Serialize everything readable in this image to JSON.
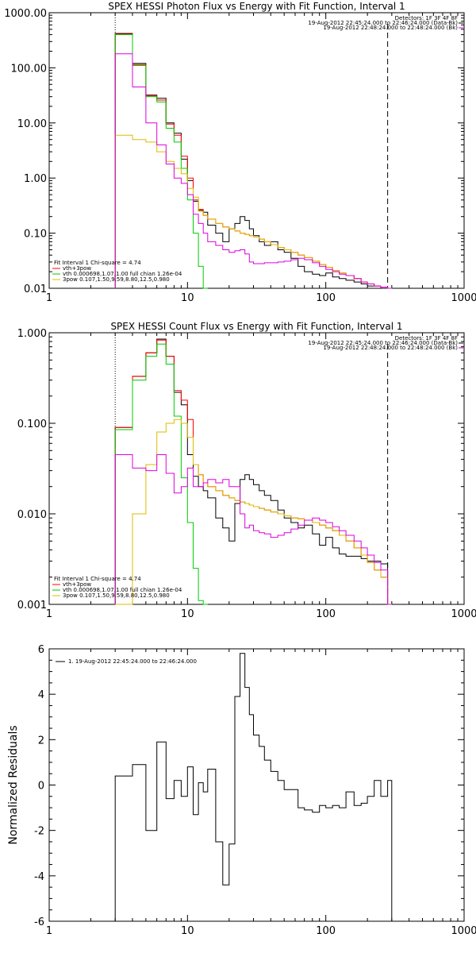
{
  "chart_data": [
    {
      "type": "line",
      "title": "SPEX HESSI Photon Flux vs Energy with Fit Function, Interval 1",
      "xlabel": "",
      "ylabel": "",
      "xscale": "log",
      "yscale": "log",
      "xlim": [
        1,
        1000
      ],
      "ylim": [
        0.01,
        1000
      ],
      "xticks": [
        "1",
        "10",
        "100",
        "1000"
      ],
      "yticks": [
        "0.01",
        "0.10",
        "1.00",
        "10.00",
        "100.00",
        "1000.00"
      ],
      "header_lines": [
        "Detectors: 1F 3F 4F 8F",
        "19-Aug-2012 22:45:24.000 to 22:46:24.000 (Data-Bk)",
        "19-Aug-2012 22:48:24.000 to 22:48:24.000 (Bk)"
      ],
      "legend_lines": [
        "Fit Interval 1   Chi-square = 4.74",
        "vth+3pow",
        "vth 0.000698,1.07,1.00   full chian 1.26e-04",
        "3pow 0.107,1.50,9.59,8.80,12.5,0.980"
      ],
      "vlines": [
        3,
        280
      ],
      "series": [
        {
          "name": "Data-Bk",
          "color": "#000000",
          "x": [
            3,
            4,
            5,
            6,
            7,
            8,
            9,
            10,
            11,
            12,
            13,
            14,
            16,
            18,
            20,
            22,
            24,
            26,
            28,
            30,
            33,
            36,
            40,
            45,
            50,
            56,
            63,
            70,
            80,
            90,
            100,
            112,
            125,
            140,
            160,
            180,
            200,
            224,
            250,
            280
          ],
          "y": [
            420,
            120,
            32,
            28,
            10,
            6.5,
            2.2,
            0.9,
            0.38,
            0.26,
            0.24,
            0.14,
            0.1,
            0.07,
            0.12,
            0.15,
            0.2,
            0.17,
            0.12,
            0.09,
            0.07,
            0.06,
            0.07,
            0.05,
            0.045,
            0.035,
            0.025,
            0.02,
            0.018,
            0.017,
            0.019,
            0.016,
            0.015,
            0.014,
            0.013,
            0.012,
            0.011,
            0.011,
            0.01,
            0.01
          ]
        },
        {
          "name": "vth+3pow",
          "color": "#ff0000",
          "x": [
            3,
            4,
            5,
            6,
            7,
            8,
            9,
            10,
            11,
            12,
            13,
            14,
            16,
            18,
            20,
            22,
            24,
            26,
            28,
            30,
            33,
            36,
            40,
            45,
            50,
            56,
            63,
            70,
            80,
            90,
            100,
            112,
            125,
            140,
            160,
            180,
            200,
            224,
            250,
            280
          ],
          "y": [
            410,
            115,
            31,
            26,
            9.5,
            6,
            2.5,
            1.0,
            0.4,
            0.27,
            0.21,
            0.18,
            0.15,
            0.13,
            0.12,
            0.11,
            0.1,
            0.095,
            0.09,
            0.085,
            0.078,
            0.07,
            0.062,
            0.055,
            0.05,
            0.045,
            0.04,
            0.036,
            0.031,
            0.027,
            0.024,
            0.021,
            0.019,
            0.017,
            0.015,
            0.013,
            0.012,
            0.011,
            0.0105,
            0.01
          ]
        },
        {
          "name": "vth",
          "color": "#00cc00",
          "x": [
            3,
            4,
            5,
            6,
            7,
            8,
            9,
            10,
            11,
            12,
            13
          ],
          "y": [
            400,
            110,
            30,
            24,
            8,
            4.5,
            1.5,
            0.4,
            0.1,
            0.025,
            0.01
          ]
        },
        {
          "name": "3pow",
          "color": "#ddbb00",
          "x": [
            3,
            4,
            5,
            6,
            7,
            8,
            9,
            10,
            11,
            12,
            13,
            14,
            16,
            18,
            20,
            22,
            24,
            26,
            28,
            30,
            33,
            36,
            40,
            45,
            50,
            56,
            63,
            70,
            80,
            90,
            100,
            112,
            125,
            140,
            160,
            180,
            200,
            224,
            250,
            280
          ],
          "y": [
            6,
            5,
            4.5,
            3,
            2.0,
            1.5,
            1.2,
            0.65,
            0.45,
            0.25,
            0.21,
            0.18,
            0.15,
            0.13,
            0.12,
            0.11,
            0.1,
            0.095,
            0.09,
            0.085,
            0.078,
            0.07,
            0.062,
            0.055,
            0.05,
            0.045,
            0.04,
            0.036,
            0.031,
            0.027,
            0.024,
            0.021,
            0.019,
            0.017,
            0.015,
            0.013,
            0.012,
            0.011,
            0.0105,
            0.01
          ]
        },
        {
          "name": "Bk",
          "color": "#dd00dd",
          "x": [
            3,
            4,
            5,
            6,
            7,
            8,
            9,
            10,
            11,
            12,
            13,
            14,
            16,
            18,
            20,
            22,
            24,
            26,
            28,
            30,
            33,
            36,
            40,
            45,
            50,
            56,
            63,
            70,
            80,
            90,
            100,
            112,
            125,
            140,
            160,
            180,
            200,
            224,
            250,
            280
          ],
          "y": [
            180,
            45,
            10,
            4,
            1.8,
            1.0,
            0.8,
            0.5,
            0.22,
            0.15,
            0.1,
            0.07,
            0.06,
            0.05,
            0.045,
            0.048,
            0.05,
            0.042,
            0.03,
            0.028,
            0.028,
            0.029,
            0.029,
            0.03,
            0.031,
            0.033,
            0.035,
            0.033,
            0.029,
            0.025,
            0.022,
            0.02,
            0.018,
            0.017,
            0.015,
            0.013,
            0.012,
            0.011,
            0.0105,
            0.01
          ]
        }
      ]
    },
    {
      "type": "line",
      "title": "SPEX HESSI Count Flux vs Energy with Fit Function, Interval 1",
      "xlabel": "",
      "ylabel": "",
      "xscale": "log",
      "yscale": "log",
      "xlim": [
        1,
        1000
      ],
      "ylim": [
        0.001,
        1.0
      ],
      "xticks": [
        "1",
        "10",
        "100",
        "1000"
      ],
      "yticks": [
        "0.001",
        "0.010",
        "0.100",
        "1.000"
      ],
      "header_lines": [
        "Detectors: 1F 3F 4F 8F",
        "19-Aug-2012 22:45:24.000 to 22:46:24.000 (Data-Bk)",
        "19-Aug-2012 22:48:24.000 to 22:48:24.000 (Bk)"
      ],
      "legend_lines": [
        "Fit Interval 1   Chi-square = 4.74",
        "vth+3pow",
        "vth 0.000698,1.07,1.00   full chian 1.26e-04",
        "3pow 0.107,1.50,9.59,8.80,12.5,0.980"
      ],
      "vlines": [
        3,
        280
      ],
      "series": [
        {
          "name": "Data-Bk",
          "color": "#000000",
          "x": [
            3,
            4,
            5,
            6,
            7,
            8,
            9,
            10,
            11,
            12,
            13,
            14,
            16,
            18,
            20,
            22,
            24,
            26,
            28,
            30,
            33,
            36,
            40,
            45,
            50,
            56,
            63,
            70,
            80,
            90,
            100,
            112,
            125,
            140,
            160,
            180,
            200,
            224,
            250,
            280
          ],
          "y": [
            0.09,
            0.33,
            0.6,
            0.85,
            0.55,
            0.22,
            0.16,
            0.045,
            0.026,
            0.02,
            0.018,
            0.015,
            0.009,
            0.007,
            0.005,
            0.013,
            0.024,
            0.027,
            0.024,
            0.021,
            0.018,
            0.016,
            0.014,
            0.011,
            0.009,
            0.008,
            0.007,
            0.0075,
            0.006,
            0.0045,
            0.0055,
            0.0042,
            0.0036,
            0.0034,
            0.0034,
            0.0032,
            0.003,
            0.003,
            0.0028,
            0.001
          ]
        },
        {
          "name": "vth+3pow",
          "color": "#ff0000",
          "x": [
            3,
            4,
            5,
            6,
            7,
            8,
            9,
            10,
            11,
            12,
            13,
            14,
            16,
            18,
            20,
            22,
            24,
            26,
            28,
            30,
            33,
            36,
            40,
            45,
            50,
            56,
            63,
            70,
            80,
            90,
            100,
            112,
            125,
            140,
            160,
            180,
            200,
            224,
            250,
            280
          ],
          "y": [
            0.09,
            0.33,
            0.6,
            0.83,
            0.55,
            0.23,
            0.18,
            0.11,
            0.035,
            0.027,
            0.022,
            0.02,
            0.018,
            0.016,
            0.015,
            0.014,
            0.0135,
            0.013,
            0.0125,
            0.012,
            0.0115,
            0.011,
            0.0105,
            0.01,
            0.0095,
            0.009,
            0.0088,
            0.0085,
            0.008,
            0.0075,
            0.007,
            0.0065,
            0.0058,
            0.005,
            0.0042,
            0.0035,
            0.0029,
            0.0024,
            0.002,
            0.001
          ]
        },
        {
          "name": "vth",
          "color": "#00cc00",
          "x": [
            3,
            4,
            5,
            6,
            7,
            8,
            9,
            10,
            11,
            12,
            13
          ],
          "y": [
            0.085,
            0.3,
            0.55,
            0.75,
            0.45,
            0.12,
            0.025,
            0.008,
            0.0025,
            0.0011,
            0.001
          ]
        },
        {
          "name": "3pow",
          "color": "#ddbb00",
          "x": [
            3,
            4,
            5,
            6,
            7,
            8,
            9,
            10,
            11,
            12,
            13,
            14,
            16,
            18,
            20,
            22,
            24,
            26,
            28,
            30,
            33,
            36,
            40,
            45,
            50,
            56,
            63,
            70,
            80,
            90,
            100,
            112,
            125,
            140,
            160,
            180,
            200,
            224,
            250,
            280
          ],
          "y": [
            0.001,
            0.01,
            0.035,
            0.08,
            0.1,
            0.11,
            0.1,
            0.07,
            0.035,
            0.027,
            0.022,
            0.02,
            0.018,
            0.016,
            0.015,
            0.014,
            0.0135,
            0.013,
            0.0125,
            0.012,
            0.0115,
            0.011,
            0.0105,
            0.01,
            0.0095,
            0.009,
            0.0088,
            0.0085,
            0.008,
            0.0075,
            0.007,
            0.0065,
            0.0058,
            0.005,
            0.0042,
            0.0035,
            0.0029,
            0.0024,
            0.002,
            0.001
          ]
        },
        {
          "name": "Bk",
          "color": "#dd00dd",
          "x": [
            3,
            4,
            5,
            6,
            7,
            8,
            9,
            10,
            11,
            12,
            13,
            14,
            16,
            18,
            20,
            22,
            24,
            26,
            28,
            30,
            33,
            36,
            40,
            45,
            50,
            56,
            63,
            70,
            80,
            90,
            100,
            112,
            125,
            140,
            160,
            180,
            200,
            224,
            250,
            280
          ],
          "y": [
            0.045,
            0.032,
            0.03,
            0.045,
            0.028,
            0.017,
            0.02,
            0.032,
            0.02,
            0.02,
            0.022,
            0.024,
            0.022,
            0.024,
            0.02,
            0.02,
            0.01,
            0.007,
            0.0075,
            0.0065,
            0.0062,
            0.006,
            0.0055,
            0.0058,
            0.0062,
            0.0068,
            0.0075,
            0.0085,
            0.009,
            0.0085,
            0.008,
            0.0072,
            0.0065,
            0.0058,
            0.005,
            0.0042,
            0.0035,
            0.0029,
            0.0024,
            0.001
          ]
        }
      ]
    },
    {
      "type": "line",
      "title": "",
      "xlabel": "",
      "ylabel": "Normalized Residuals",
      "xscale": "log",
      "yscale": "linear",
      "xlim": [
        1,
        1000
      ],
      "ylim": [
        -6,
        6
      ],
      "xticks": [
        "1",
        "10",
        "100",
        "1000"
      ],
      "yticks": [
        "-6",
        "-4",
        "-2",
        "0",
        "2",
        "4",
        "6"
      ],
      "legend_lines": [
        "1. 19-Aug-2012 22:45:24.000 to 22:46:24.000"
      ],
      "series": [
        {
          "name": "1. 19-Aug-2012 22:45:24.000 to 22:46:24.000",
          "color": "#000000",
          "x": [
            3,
            4,
            5,
            6,
            7,
            8,
            9,
            10,
            11,
            12,
            13,
            14,
            16,
            18,
            20,
            22,
            24,
            26,
            28,
            30,
            33,
            36,
            40,
            45,
            50,
            56,
            63,
            70,
            80,
            90,
            100,
            112,
            125,
            140,
            160,
            180,
            200,
            224,
            250,
            280
          ],
          "y": [
            0.4,
            0.9,
            -2.0,
            1.9,
            -0.6,
            0.2,
            -0.5,
            0.8,
            -1.3,
            0.1,
            -0.3,
            0.7,
            -2.5,
            -4.4,
            -2.6,
            3.9,
            5.8,
            4.3,
            3.1,
            2.2,
            1.7,
            1.1,
            0.6,
            0.2,
            -0.2,
            -0.2,
            -1.0,
            -1.1,
            -1.2,
            -0.9,
            -1.0,
            -0.9,
            -1.0,
            -0.3,
            -0.9,
            -0.8,
            -0.5,
            0.2,
            -0.5,
            0.2
          ]
        }
      ]
    }
  ]
}
